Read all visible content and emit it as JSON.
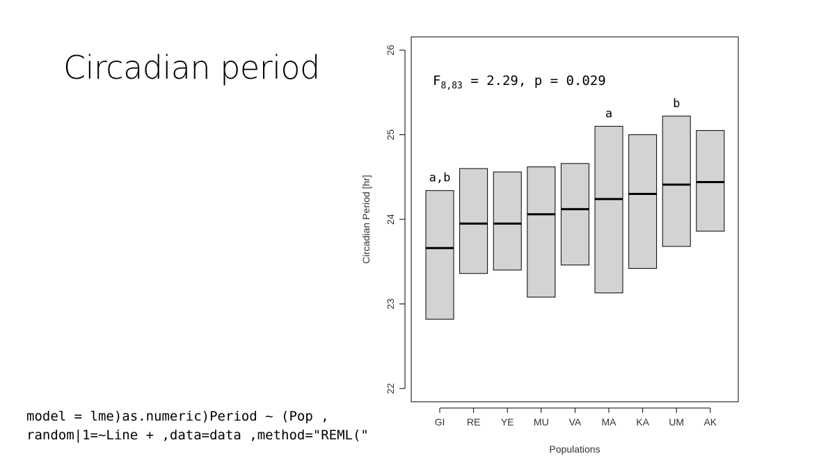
{
  "slide": {
    "title": "Circadian period",
    "code_lines": [
      "model = lme)as.numeric)Period ~ (Pop ,",
      "random|1=~Line + ,data=data ,method=\"REML(\""
    ]
  },
  "chart_data": {
    "type": "box",
    "xlabel": "Populations",
    "ylabel": "Circadian Period [hr]",
    "ylim": [
      21.85,
      26.2
    ],
    "yticks": [
      22,
      23,
      24,
      25,
      26
    ],
    "annotation": {
      "main": "F",
      "subscript": "8,83",
      "rest": " = 2.29, p = 0.029"
    },
    "categories": [
      "GI",
      "RE",
      "YE",
      "MU",
      "VA",
      "MA",
      "KA",
      "UM",
      "AK"
    ],
    "boxes": [
      {
        "category": "GI",
        "lower": 22.82,
        "median": 23.66,
        "upper": 24.34,
        "letter": "a,b"
      },
      {
        "category": "RE",
        "lower": 23.36,
        "median": 23.95,
        "upper": 24.6,
        "letter": ""
      },
      {
        "category": "YE",
        "lower": 23.4,
        "median": 23.95,
        "upper": 24.56,
        "letter": ""
      },
      {
        "category": "MU",
        "lower": 23.08,
        "median": 24.06,
        "upper": 24.62,
        "letter": ""
      },
      {
        "category": "VA",
        "lower": 23.46,
        "median": 24.12,
        "upper": 24.66,
        "letter": ""
      },
      {
        "category": "MA",
        "lower": 23.13,
        "median": 24.24,
        "upper": 25.1,
        "letter": "a"
      },
      {
        "category": "KA",
        "lower": 23.42,
        "median": 24.3,
        "upper": 25.0,
        "letter": ""
      },
      {
        "category": "UM",
        "lower": 23.68,
        "median": 24.41,
        "upper": 25.22,
        "letter": "b"
      },
      {
        "category": "AK",
        "lower": 23.86,
        "median": 24.44,
        "upper": 25.05,
        "letter": ""
      }
    ],
    "colors": {
      "box_fill": "#d3d3d3",
      "box_stroke": "#000000",
      "median": "#000000"
    },
    "grid": false,
    "legend": "none"
  }
}
